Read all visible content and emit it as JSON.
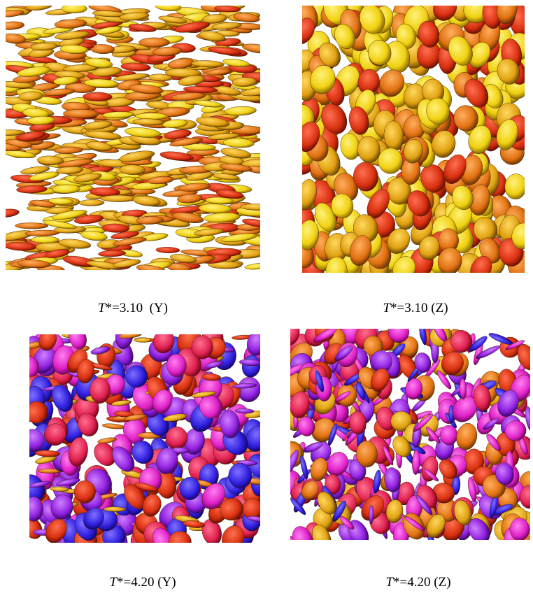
{
  "panels": [
    {
      "caption": {
        "symbol": "T",
        "rest": "*=3.10  (Y)"
      }
    },
    {
      "caption": {
        "symbol": "T",
        "rest": "*=3.10 (Z)"
      }
    },
    {
      "caption": {
        "symbol": "T",
        "rest": "*=4.20 (Y)"
      }
    },
    {
      "caption": {
        "symbol": "T",
        "rest": "*=4.20 (Z)"
      }
    }
  ]
}
